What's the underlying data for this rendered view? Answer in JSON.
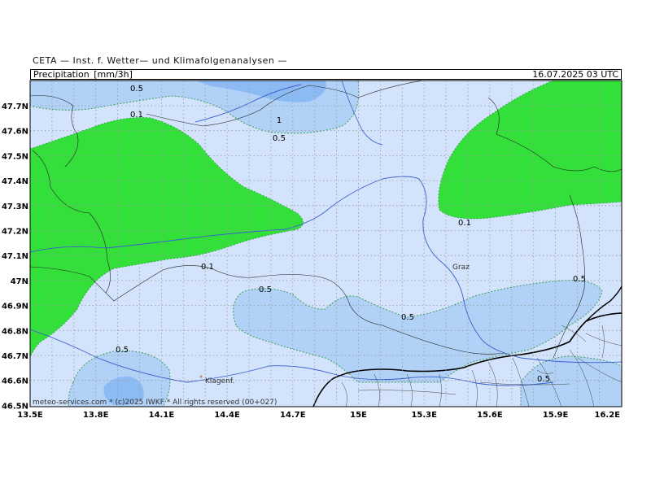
{
  "header": {
    "title": "CETA — Inst. f. Wetter— und Klimafolgenanalysen —",
    "field": "Precipitation_[mm/3h]",
    "datetime": "16.07.2025 03 UTC"
  },
  "axes": {
    "lat_labels": [
      "47.7N",
      "47.6N",
      "47.5N",
      "47.4N",
      "47.3N",
      "47.2N",
      "47.1N",
      "47N",
      "46.9N",
      "46.8N",
      "46.7N",
      "46.6N",
      "46.5N"
    ],
    "lon_labels": [
      "13.5E",
      "13.8E",
      "14.1E",
      "14.4E",
      "14.7E",
      "15E",
      "15.3E",
      "15.6E",
      "15.9E",
      "16.2E"
    ]
  },
  "contour_labels": {
    "a": "0.5",
    "b": "0.1",
    "c": "1",
    "d": "0.5",
    "e": "0.1",
    "f": "0.1",
    "g": "0.5",
    "h": "0.5",
    "i": "0.5",
    "j": "0.5",
    "k": "0.5"
  },
  "cities": {
    "graz": "Graz",
    "klagenfurt": "Klagenf."
  },
  "copyright": "meteo-services.com * (c)2025 IWKF * All rights reserved (00+027)",
  "colors": {
    "low": "#d2e3fb",
    "mid": "#b1d1f7",
    "high": "#8cbaf3",
    "green": "#33e03a",
    "river": "#3a5fd0",
    "border": "#000000"
  }
}
